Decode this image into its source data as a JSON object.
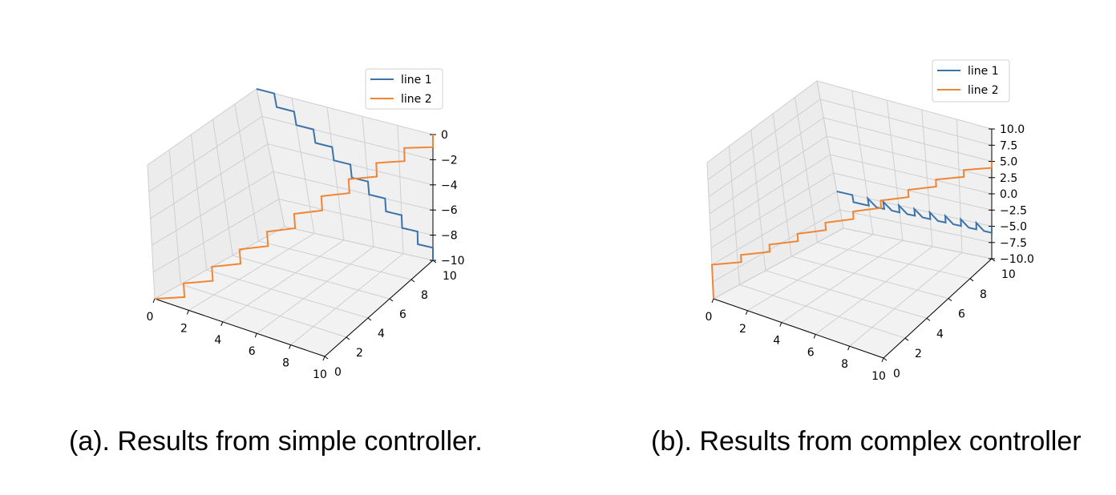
{
  "chart_data": [
    {
      "type": "line3d",
      "caption": "(a). Results from simple controller.",
      "legend": [
        "line 1",
        "line 2"
      ],
      "legend_position": "top-right",
      "xlim": [
        0,
        10
      ],
      "ylim": [
        0,
        10
      ],
      "zlim": [
        -10,
        0
      ],
      "xticks": [
        "0",
        "2",
        "4",
        "6",
        "8",
        "10"
      ],
      "yticks": [
        "0",
        "2",
        "4",
        "6",
        "8",
        "10"
      ],
      "zticks": [
        "0",
        "−2",
        "−4",
        "−6",
        "−8",
        "−10"
      ],
      "zvals": [
        0,
        -2,
        -4,
        -6,
        -8,
        -10
      ],
      "grid": true,
      "series": [
        {
          "name": "line 1",
          "color": "#3b73aa",
          "points": [
            [
              0,
              10,
              0
            ],
            [
              0.5,
              10,
              0
            ],
            [
              1,
              10,
              0
            ],
            [
              1,
              10,
              -1
            ],
            [
              1.5,
              10,
              -1
            ],
            [
              2,
              10,
              -1
            ],
            [
              2,
              10,
              -2
            ],
            [
              2.5,
              10,
              -2
            ],
            [
              3,
              10,
              -2
            ],
            [
              3,
              10,
              -3
            ],
            [
              3.5,
              10,
              -3
            ],
            [
              4,
              10,
              -3
            ],
            [
              4,
              10,
              -4
            ],
            [
              4.5,
              10,
              -4
            ],
            [
              5,
              10,
              -4
            ],
            [
              5,
              10,
              -5
            ],
            [
              5.5,
              10,
              -5
            ],
            [
              6,
              10,
              -5
            ],
            [
              6,
              10,
              -6
            ],
            [
              6.5,
              10,
              -6
            ],
            [
              7,
              10,
              -6
            ],
            [
              7,
              10,
              -7
            ],
            [
              7.5,
              10,
              -7
            ],
            [
              8,
              10,
              -7
            ],
            [
              8,
              10,
              -8
            ],
            [
              8.5,
              10,
              -8
            ],
            [
              9,
              10,
              -8
            ],
            [
              9,
              10,
              -9
            ],
            [
              9.5,
              10,
              -9
            ],
            [
              10,
              10,
              -9
            ],
            [
              10,
              10,
              -10
            ]
          ]
        },
        {
          "name": "line 2",
          "color": "#ef8636",
          "points": [
            [
              0,
              0,
              -10
            ],
            [
              0.5,
              0.5,
              -10
            ],
            [
              1,
              1,
              -10
            ],
            [
              1,
              1,
              -9
            ],
            [
              1.5,
              1.5,
              -9
            ],
            [
              2,
              2,
              -9
            ],
            [
              2,
              2,
              -8
            ],
            [
              2.5,
              2.5,
              -8
            ],
            [
              3,
              3,
              -8
            ],
            [
              3,
              3,
              -7
            ],
            [
              3.5,
              3.5,
              -7
            ],
            [
              4,
              4,
              -7
            ],
            [
              4,
              4,
              -6
            ],
            [
              4.5,
              4.5,
              -6
            ],
            [
              5,
              5,
              -6
            ],
            [
              5,
              5,
              -5
            ],
            [
              5.5,
              5.5,
              -5
            ],
            [
              6,
              6,
              -5
            ],
            [
              6,
              6,
              -4
            ],
            [
              6.5,
              6.5,
              -4
            ],
            [
              7,
              7,
              -4
            ],
            [
              7,
              7,
              -3
            ],
            [
              7.5,
              7.5,
              -3
            ],
            [
              8,
              8,
              -3
            ],
            [
              8,
              8,
              -2
            ],
            [
              8.5,
              8.5,
              -2
            ],
            [
              9,
              9,
              -2
            ],
            [
              9,
              9,
              -1
            ],
            [
              9.5,
              9.5,
              -1
            ],
            [
              10,
              10,
              -1
            ],
            [
              10,
              10,
              0
            ]
          ]
        }
      ]
    },
    {
      "type": "line3d",
      "caption": "(b). Results from complex controller",
      "legend": [
        "line 1",
        "line 2"
      ],
      "legend_position": "top-right",
      "xlim": [
        0,
        10
      ],
      "ylim": [
        0,
        10
      ],
      "zlim": [
        -10,
        10
      ],
      "xticks": [
        "0",
        "2",
        "4",
        "6",
        "8",
        "10"
      ],
      "yticks": [
        "0",
        "2",
        "4",
        "6",
        "8",
        "10"
      ],
      "zticks": [
        "10.0",
        "7.5",
        "5.0",
        "2.5",
        "0.0",
        "−2.5",
        "−5.0",
        "−7.5",
        "−10.0"
      ],
      "zvals": [
        10,
        7.5,
        5,
        2.5,
        0,
        -2.5,
        -5,
        -7.5,
        -10
      ],
      "grid": true,
      "series": [
        {
          "name": "line 1",
          "color": "#3b73aa",
          "points": [
            [
              0,
              10,
              -5
            ],
            [
              0.5,
              10,
              -5
            ],
            [
              1,
              10,
              -5
            ],
            [
              1,
              10,
              -6
            ],
            [
              1.5,
              10,
              -6
            ],
            [
              2,
              10,
              -6
            ],
            [
              2,
              10,
              -5
            ],
            [
              2.5,
              10,
              -6
            ],
            [
              3,
              10,
              -6
            ],
            [
              3,
              10,
              -5
            ],
            [
              3.5,
              10,
              -6
            ],
            [
              4,
              10,
              -6
            ],
            [
              4,
              10,
              -5
            ],
            [
              4.5,
              10,
              -6
            ],
            [
              5,
              10,
              -6
            ],
            [
              5,
              10,
              -5
            ],
            [
              5.5,
              10,
              -6
            ],
            [
              6,
              10,
              -6
            ],
            [
              6,
              10,
              -5
            ],
            [
              6.5,
              10,
              -6
            ],
            [
              7,
              10,
              -6
            ],
            [
              7,
              10,
              -5
            ],
            [
              7.5,
              10,
              -6
            ],
            [
              8,
              10,
              -6
            ],
            [
              8,
              10,
              -5
            ],
            [
              8.5,
              10,
              -6
            ],
            [
              9,
              10,
              -6
            ],
            [
              9,
              10,
              -5
            ],
            [
              9.5,
              10,
              -6
            ],
            [
              10,
              10,
              -6
            ],
            [
              10,
              10,
              -5
            ]
          ]
        },
        {
          "name": "line 2",
          "color": "#ef8636",
          "points": [
            [
              0,
              0,
              -10
            ],
            [
              0,
              0,
              -5
            ],
            [
              0.5,
              0.5,
              -5
            ],
            [
              1,
              1,
              -5
            ],
            [
              1,
              1,
              -4
            ],
            [
              1.5,
              1.5,
              -4
            ],
            [
              2,
              2,
              -4
            ],
            [
              2,
              2,
              -3
            ],
            [
              2.5,
              2.5,
              -3
            ],
            [
              3,
              3,
              -3
            ],
            [
              3,
              3,
              -2
            ],
            [
              3.5,
              3.5,
              -2
            ],
            [
              4,
              4,
              -2
            ],
            [
              4,
              4,
              -1
            ],
            [
              4.5,
              4.5,
              -1
            ],
            [
              5,
              5,
              -1
            ],
            [
              5,
              5,
              0
            ],
            [
              5.5,
              5.5,
              0
            ],
            [
              6,
              6,
              0
            ],
            [
              6,
              6,
              1
            ],
            [
              6.5,
              6.5,
              1
            ],
            [
              7,
              7,
              1
            ],
            [
              7,
              7,
              2
            ],
            [
              7.5,
              7.5,
              2
            ],
            [
              8,
              8,
              2
            ],
            [
              8,
              8,
              3
            ],
            [
              8.5,
              8.5,
              3
            ],
            [
              9,
              9,
              3
            ],
            [
              9,
              9,
              4
            ],
            [
              9.5,
              9.5,
              4
            ],
            [
              10,
              10,
              4
            ],
            [
              10,
              10,
              5
            ]
          ]
        }
      ]
    }
  ]
}
